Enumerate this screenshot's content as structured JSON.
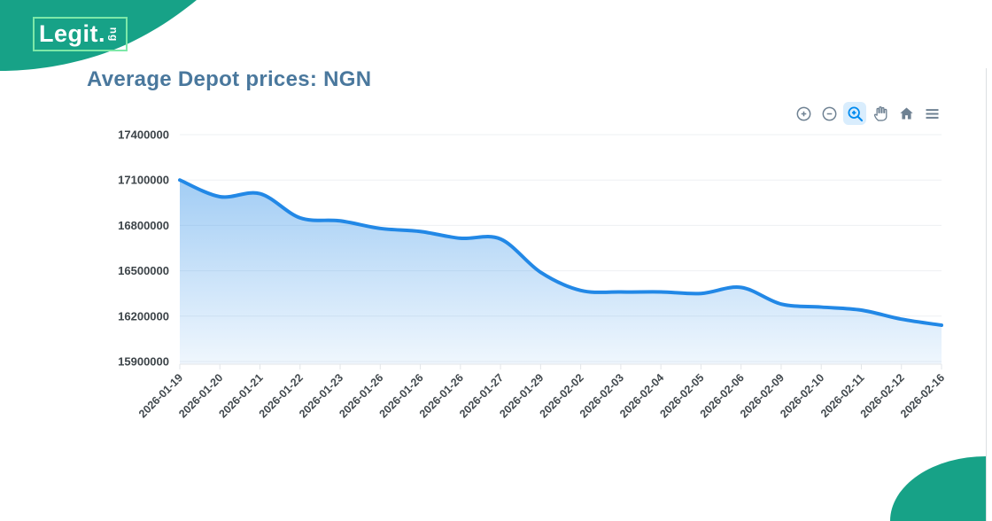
{
  "logo": {
    "brand": "Legit",
    "dot": ".",
    "suffix": "ng"
  },
  "page": {
    "title": "Average Depot prices: NGN"
  },
  "toolbar": {
    "icons": [
      "zoom-in-icon",
      "zoom-out-icon",
      "selection-zoom-icon",
      "pan-icon",
      "home-icon",
      "menu-icon"
    ],
    "active_icon": "selection-zoom-icon"
  },
  "chart_data": {
    "type": "area",
    "title": "Average Depot prices: NGN",
    "categories": [
      "2026-01-19",
      "2026-01-20",
      "2026-01-21",
      "2026-01-22",
      "2026-01-23",
      "2026-01-26",
      "2026-01-26",
      "2026-01-26",
      "2026-01-27",
      "2026-01-29",
      "2026-02-02",
      "2026-02-03",
      "2026-02-04",
      "2026-02-05",
      "2026-02-06",
      "2026-02-09",
      "2026-02-10",
      "2026-02-11",
      "2026-02-12",
      "2026-02-16"
    ],
    "values": [
      17100000,
      16990000,
      17010000,
      16850000,
      16830000,
      16780000,
      16760000,
      16715000,
      16710000,
      16490000,
      16370000,
      16360000,
      16360000,
      16350000,
      16390000,
      16280000,
      16260000,
      16240000,
      16180000,
      16140000
    ],
    "ylim": [
      15900000,
      17400000
    ],
    "ytick_step": 300000,
    "ytick_labels": [
      "17400000",
      "17100000",
      "16800000",
      "16500000",
      "16200000",
      "15900000"
    ],
    "x_label_rotation": -45,
    "grid": true,
    "legend": "none",
    "xlabel": "",
    "ylabel": "",
    "line_color": "#2288e6",
    "fill_gradient_top": "rgba(34,136,230,0.42)",
    "fill_gradient_bottom": "rgba(34,136,230,0.07)",
    "grid_color": "#eef0f3",
    "axis_color": "#e2e5e8"
  },
  "colors": {
    "brand_green": "#17a287",
    "logo_outline": "#7de8a8",
    "title_text": "#4a789d",
    "axis_label": "#3d4449",
    "toolbar_icon": "#6e8192",
    "toolbar_active": "#008aef"
  }
}
